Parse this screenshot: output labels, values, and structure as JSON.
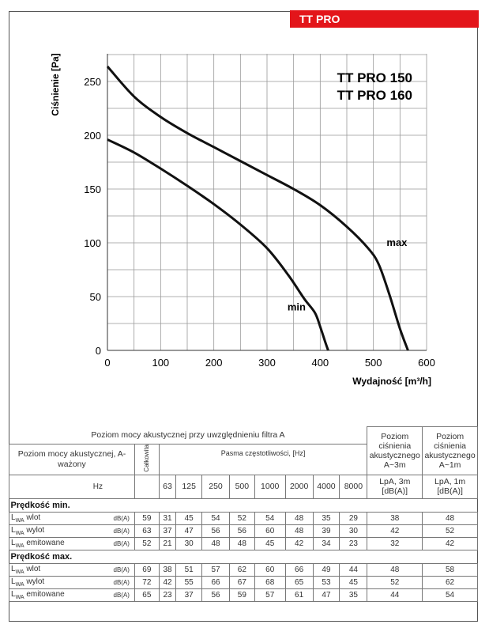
{
  "badge": "TT PRO",
  "colors": {
    "accent": "#e3151a",
    "curve": "#111111",
    "grid": "#999999"
  },
  "chart_data": {
    "type": "line",
    "title_lines": [
      "TT PRO 150",
      "TT PRO 160"
    ],
    "xlabel": "Wydajność [m³/h]",
    "ylabel": "Ciśnienie [Pa]",
    "xlim": [
      0,
      600
    ],
    "ylim": [
      0,
      275
    ],
    "x_ticks": [
      0,
      100,
      200,
      300,
      400,
      500,
      600
    ],
    "y_ticks": [
      0,
      50,
      100,
      150,
      200,
      250
    ],
    "grid": true,
    "series": [
      {
        "name": "max",
        "x": [
          0,
          50,
          100,
          150,
          200,
          250,
          300,
          350,
          400,
          450,
          490,
          510,
          530,
          550,
          565
        ],
        "y": [
          264,
          236,
          217,
          202,
          189,
          176,
          163,
          150,
          135,
          115,
          95,
          80,
          52,
          20,
          0
        ]
      },
      {
        "name": "min",
        "x": [
          0,
          50,
          100,
          150,
          200,
          250,
          300,
          340,
          370,
          390,
          400,
          410,
          415
        ],
        "y": [
          196,
          184,
          169,
          153,
          136,
          117,
          95,
          70,
          48,
          35,
          22,
          7,
          0
        ]
      }
    ]
  },
  "table": {
    "header_title": "Poziom mocy akustycznej przy uwzględnieniu filtra A",
    "row_label": "Poziom mocy akustycznej, A-ważony",
    "col_total": "Całkowita",
    "col_bands": "Pasma częstotliwości, [Hz]",
    "col_lpa3": "Poziom ciśnienia akustycznego A~3m",
    "col_lpa1": "Poziom ciśnienia akustycznego A~1m",
    "hz": "Hz",
    "bands": [
      "63",
      "125",
      "250",
      "500",
      "1000",
      "2000",
      "4000",
      "8000"
    ],
    "lpa3_unit": "LpA, 3m [dB(A)]",
    "lpa1_unit": "LpA, 1m [dB(A)]",
    "sections": [
      {
        "title": "Prędkość min.",
        "rows": [
          {
            "label": "wlot",
            "unit": "dB(A)",
            "total": "59",
            "bands": [
              "31",
              "45",
              "54",
              "52",
              "54",
              "48",
              "35",
              "29"
            ],
            "lpa3": "38",
            "lpa1": "48"
          },
          {
            "label": "wylot",
            "unit": "dB(A)",
            "total": "63",
            "bands": [
              "37",
              "47",
              "56",
              "56",
              "60",
              "48",
              "39",
              "30"
            ],
            "lpa3": "42",
            "lpa1": "52"
          },
          {
            "label": "emitowane",
            "unit": "dB(A)",
            "total": "52",
            "bands": [
              "21",
              "30",
              "48",
              "48",
              "45",
              "42",
              "34",
              "23"
            ],
            "lpa3": "32",
            "lpa1": "42"
          }
        ]
      },
      {
        "title": "Prędkość max.",
        "rows": [
          {
            "label": "wlot",
            "unit": "dB(A)",
            "total": "69",
            "bands": [
              "38",
              "51",
              "57",
              "62",
              "60",
              "66",
              "49",
              "44"
            ],
            "lpa3": "48",
            "lpa1": "58"
          },
          {
            "label": "wylot",
            "unit": "dB(A)",
            "total": "72",
            "bands": [
              "42",
              "55",
              "66",
              "67",
              "68",
              "65",
              "53",
              "45"
            ],
            "lpa3": "52",
            "lpa1": "62"
          },
          {
            "label": "emitowane",
            "unit": "dB(A)",
            "total": "65",
            "bands": [
              "23",
              "37",
              "56",
              "59",
              "57",
              "61",
              "47",
              "35"
            ],
            "lpa3": "44",
            "lpa1": "54"
          }
        ]
      }
    ]
  }
}
